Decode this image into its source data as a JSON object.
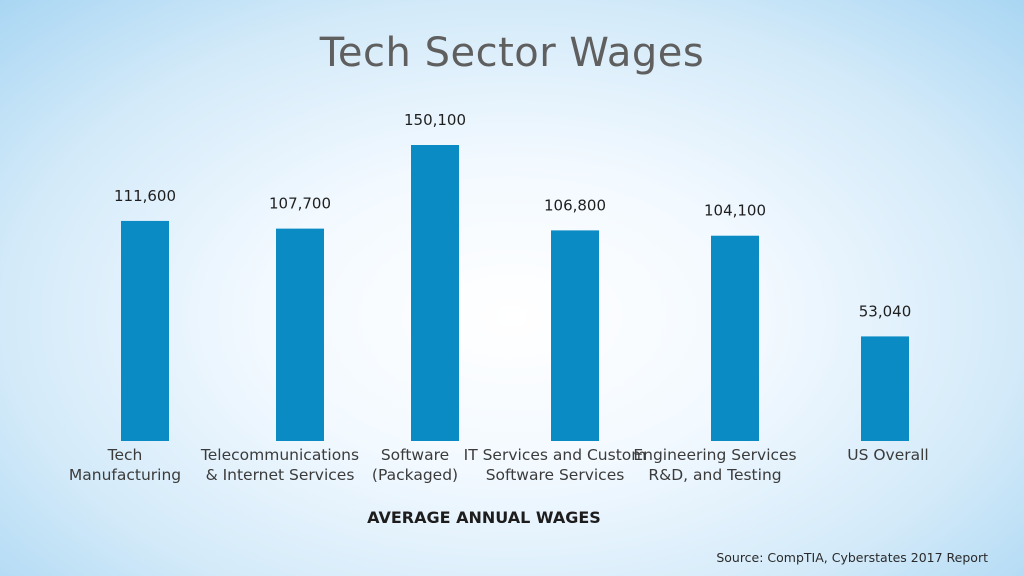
{
  "chart_data": {
    "type": "bar",
    "title": "Tech Sector Wages",
    "xlabel": "AVERAGE ANNUAL WAGES",
    "ylabel": "",
    "source": "Source: CompTIA, Cyberstates 2017 Report",
    "categories": [
      "Tech\nManufacturing",
      "Telecommunications\n& Internet Services",
      "Software\n(Packaged)",
      "IT Services and Custom\nSoftware Services",
      "Engineering Services\nR&D, and Testing",
      "US Overall"
    ],
    "values": [
      111600,
      107700,
      150100,
      106800,
      104100,
      53040
    ],
    "data_labels": [
      "111,600",
      "107,700",
      "150,100",
      "106,800",
      "104,100",
      "53,040"
    ],
    "bar_color": "#0b8bc4",
    "grid": false,
    "legend": "none"
  }
}
